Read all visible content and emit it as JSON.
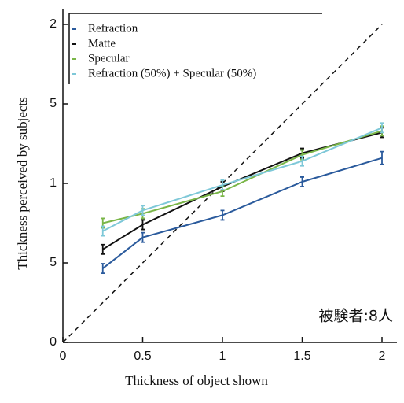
{
  "chart_data": {
    "type": "line",
    "xlabel": "Thickness of object shown",
    "ylabel": "Thickness perceived by subjects",
    "annotation": "被験者:8人",
    "x": [
      0.25,
      0.5,
      1,
      1.5,
      2
    ],
    "series": [
      {
        "name": "Refraction",
        "color": "#2a5a9c",
        "values": [
          0.465,
          0.66,
          0.8,
          1.01,
          1.16
        ],
        "errors": [
          0.03,
          0.03,
          0.03,
          0.03,
          0.04
        ]
      },
      {
        "name": "Matte",
        "color": "#111111",
        "values": [
          0.585,
          0.74,
          0.98,
          1.19,
          1.32
        ],
        "errors": [
          0.03,
          0.03,
          0.03,
          0.03,
          0.03
        ]
      },
      {
        "name": "Specular",
        "color": "#7ab648",
        "values": [
          0.75,
          0.81,
          0.95,
          1.18,
          1.33
        ],
        "errors": [
          0.03,
          0.03,
          0.03,
          0.03,
          0.03
        ]
      },
      {
        "name": "Refraction (50%) + Specular (50%)",
        "color": "#7ec8d8",
        "values": [
          0.7,
          0.83,
          0.99,
          1.14,
          1.35
        ],
        "errors": [
          0.03,
          0.03,
          0.03,
          0.03,
          0.03
        ]
      }
    ],
    "reference_line": [
      0,
      2
    ],
    "xlim": [
      0,
      2
    ],
    "ylim": [
      0,
      2
    ],
    "xticks": [
      0,
      0.5,
      1,
      1.5,
      2
    ],
    "yticks": [
      0,
      {
        "value": 0.5,
        "label": "5"
      },
      1,
      {
        "value": 1.5,
        "label": "5"
      },
      2
    ]
  }
}
